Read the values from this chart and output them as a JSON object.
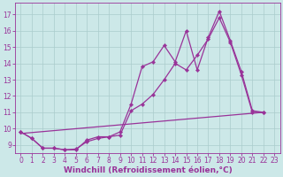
{
  "xlabel": "Windchill (Refroidissement éolien,°C)",
  "xlim": [
    -0.5,
    23.5
  ],
  "ylim": [
    8.5,
    17.7
  ],
  "xticks": [
    0,
    1,
    2,
    3,
    4,
    5,
    6,
    7,
    8,
    9,
    10,
    11,
    12,
    13,
    14,
    15,
    16,
    17,
    18,
    19,
    20,
    21,
    22,
    23
  ],
  "yticks": [
    9,
    10,
    11,
    12,
    13,
    14,
    15,
    16,
    17
  ],
  "background_color": "#cce8e8",
  "grid_color": "#aacccc",
  "line_color": "#993399",
  "line_width": 0.9,
  "marker": "D",
  "marker_size": 2.2,
  "series": [
    {
      "x": [
        0,
        1,
        2,
        3,
        4,
        5,
        6,
        7,
        8,
        9,
        10,
        11,
        12,
        13,
        14,
        15,
        16,
        17,
        18,
        19,
        20,
        21,
        22
      ],
      "y": [
        9.8,
        9.4,
        8.8,
        8.8,
        8.7,
        8.7,
        9.3,
        9.5,
        9.5,
        9.8,
        11.5,
        13.8,
        14.1,
        15.1,
        14.1,
        16.0,
        13.6,
        15.6,
        17.2,
        15.4,
        13.5,
        11.1,
        11.0
      ]
    },
    {
      "x": [
        0,
        1,
        2,
        3,
        4,
        5,
        6,
        7,
        8,
        9,
        10,
        11,
        12,
        13,
        14,
        15,
        16,
        17,
        18,
        19,
        20,
        21,
        22
      ],
      "y": [
        9.8,
        9.4,
        8.8,
        8.8,
        8.7,
        8.75,
        9.2,
        9.4,
        9.5,
        9.6,
        11.1,
        11.5,
        12.1,
        13.0,
        14.0,
        13.6,
        14.5,
        15.5,
        16.8,
        15.3,
        13.3,
        11.0,
        11.0
      ]
    },
    {
      "x": [
        0,
        22
      ],
      "y": [
        9.7,
        11.0
      ],
      "no_marker": true
    }
  ],
  "font_size": 6.5,
  "tick_font_size": 5.5,
  "xlabel_fontsize": 6.5,
  "xlabel_fontweight": "bold"
}
